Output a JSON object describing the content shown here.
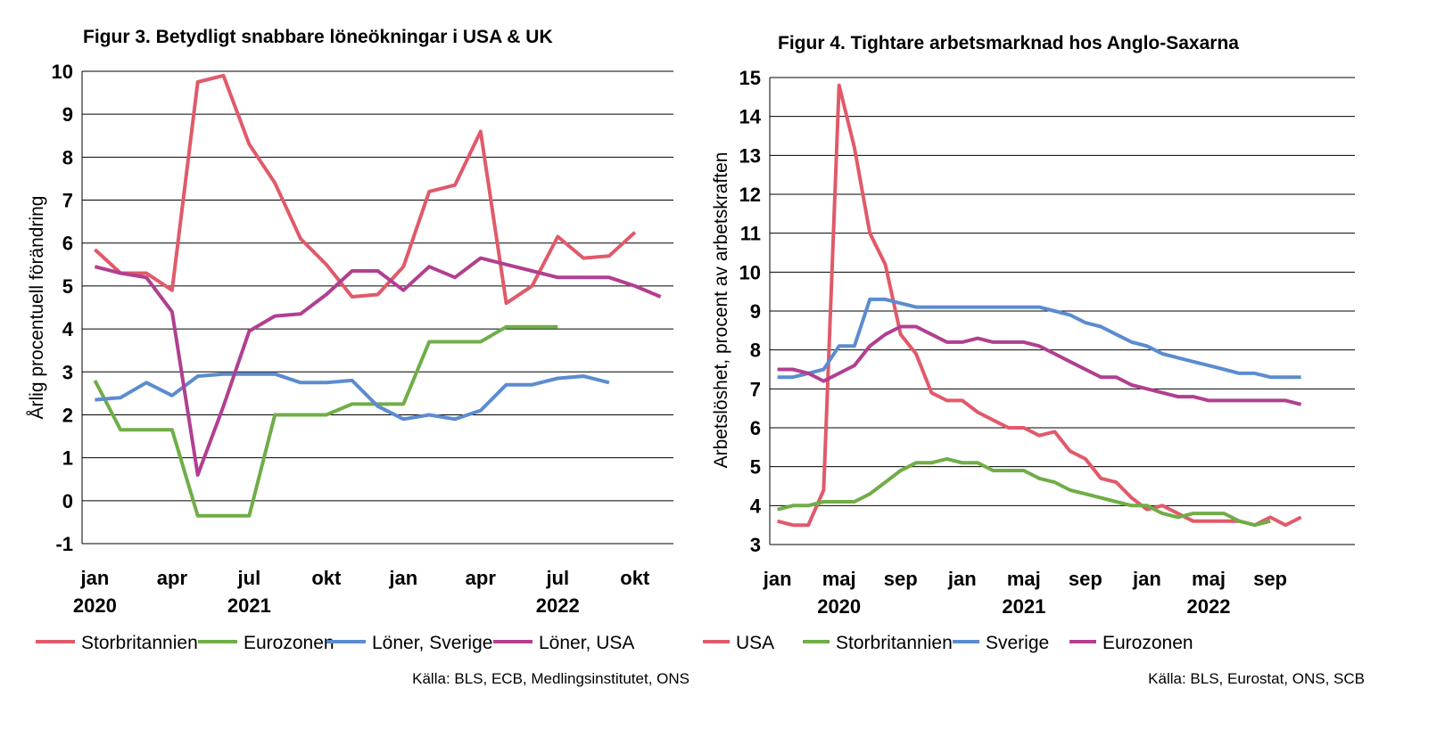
{
  "chart_data": [
    {
      "type": "line",
      "title": "Figur 3. Betydligt snabbare löneökningar i USA & UK",
      "ylabel": "Årlig procentuell förändring",
      "xlabel": "",
      "ylim": [
        -1,
        10
      ],
      "y_ticks": [
        "-1",
        "0",
        "1",
        "2",
        "3",
        "4",
        "5",
        "6",
        "7",
        "8",
        "9",
        "10"
      ],
      "x_ticks": [
        "jan",
        "apr",
        "jul",
        "okt",
        "jan",
        "apr",
        "jul",
        "okt"
      ],
      "year_labels": [
        "2020",
        "2021",
        "2022"
      ],
      "grid": true,
      "legend_position": "bottom",
      "source": "Källa: BLS, ECB, Medlingsinstitutet, ONS",
      "series": [
        {
          "name": "Storbritannien",
          "color": "#E05A6A",
          "x": [
            "2020-01",
            "2020-02",
            "2020-03",
            "2020-04",
            "2020-05",
            "2020-06",
            "2020-07",
            "2020-08",
            "2020-09",
            "2020-10",
            "2020-11",
            "2020-12",
            "2021-01",
            "2021-02",
            "2021-03",
            "2021-04",
            "2021-05",
            "2021-06",
            "2021-07",
            "2021-08",
            "2021-09",
            "2021-10",
            "2021-11",
            "2021-12"
          ],
          "values": [
            5.85,
            5.3,
            5.3,
            4.9,
            9.75,
            9.9,
            8.3,
            7.4,
            6.1,
            5.5,
            4.75,
            4.8,
            5.45,
            7.2,
            7.35,
            8.6,
            4.6,
            5.0,
            6.15,
            5.65,
            5.7,
            6.25,
            null,
            null
          ]
        },
        {
          "name": "Eurozonen",
          "color": "#70AD47",
          "x": [
            "2020-01",
            "2020-02",
            "2020-03",
            "2020-04",
            "2020-05",
            "2020-06",
            "2020-07",
            "2020-08",
            "2020-09",
            "2020-10",
            "2020-11",
            "2020-12",
            "2021-01",
            "2021-02",
            "2021-03",
            "2021-04",
            "2021-05",
            "2021-06",
            "2021-07",
            "2021-08",
            "2021-09",
            "2021-10",
            "2021-11",
            "2021-12"
          ],
          "values": [
            2.8,
            1.65,
            1.65,
            1.65,
            -0.35,
            -0.35,
            -0.35,
            2.0,
            2.0,
            2.0,
            2.25,
            2.25,
            2.25,
            3.7,
            3.7,
            3.7,
            4.05,
            4.05,
            4.05,
            null,
            null,
            null,
            null,
            null
          ]
        },
        {
          "name": "Löner, Sverige",
          "color": "#5B8CCF",
          "x": [
            "2020-01",
            "2020-02",
            "2020-03",
            "2020-04",
            "2020-05",
            "2020-06",
            "2020-07",
            "2020-08",
            "2020-09",
            "2020-10",
            "2020-11",
            "2020-12",
            "2021-01",
            "2021-02",
            "2021-03",
            "2021-04",
            "2021-05",
            "2021-06",
            "2021-07",
            "2021-08",
            "2021-09",
            "2021-10",
            "2021-11",
            "2021-12"
          ],
          "values": [
            2.35,
            2.4,
            2.75,
            2.45,
            2.9,
            2.95,
            2.95,
            2.95,
            2.75,
            2.75,
            2.8,
            2.2,
            1.9,
            2.0,
            1.9,
            2.1,
            2.7,
            2.7,
            2.85,
            2.9,
            2.75,
            null,
            null,
            null
          ]
        },
        {
          "name": "Löner, USA",
          "color": "#B13F90",
          "x": [
            "2020-01",
            "2020-02",
            "2020-03",
            "2020-04",
            "2020-05",
            "2020-06",
            "2020-07",
            "2020-08",
            "2020-09",
            "2020-10",
            "2020-11",
            "2020-12",
            "2021-01",
            "2021-02",
            "2021-03",
            "2021-04",
            "2021-05",
            "2021-06",
            "2021-07",
            "2021-08",
            "2021-09",
            "2021-10",
            "2021-11",
            "2021-12"
          ],
          "values": [
            5.45,
            5.3,
            5.2,
            4.4,
            0.6,
            2.2,
            3.95,
            4.3,
            4.35,
            4.8,
            5.35,
            5.35,
            4.9,
            5.45,
            5.2,
            5.65,
            5.5,
            5.35,
            5.2,
            5.2,
            5.2,
            5.0,
            4.75,
            null
          ]
        }
      ]
    },
    {
      "type": "line",
      "title": "Figur 4. Tightare arbetsmarknad hos Anglo-Saxarna",
      "ylabel": "Arbetslöshet, procent av arbetskraften",
      "xlabel": "",
      "ylim": [
        3,
        15
      ],
      "y_ticks": [
        "3",
        "4",
        "5",
        "6",
        "7",
        "8",
        "9",
        "10",
        "11",
        "12",
        "13",
        "14",
        "15"
      ],
      "x_ticks": [
        "jan",
        "maj",
        "sep",
        "jan",
        "maj",
        "sep",
        "jan",
        "maj",
        "sep"
      ],
      "year_labels": [
        "2020",
        "2021",
        "2022"
      ],
      "grid": true,
      "legend_position": "bottom",
      "source": "Källa: BLS, Eurostat, ONS, SCB",
      "series": [
        {
          "name": "USA",
          "color": "#E05A6A",
          "x": [
            "2020-01",
            "2020-02",
            "2020-03",
            "2020-04",
            "2020-05",
            "2020-06",
            "2020-07",
            "2020-08",
            "2020-09",
            "2020-10",
            "2020-11",
            "2020-12",
            "2021-01",
            "2021-02",
            "2021-03",
            "2021-04",
            "2021-05",
            "2021-06",
            "2021-07",
            "2021-08",
            "2021-09",
            "2021-10",
            "2021-11",
            "2021-12",
            "2022-01",
            "2022-02",
            "2022-03",
            "2022-04",
            "2022-05",
            "2022-06",
            "2022-07",
            "2022-08",
            "2022-09",
            "2022-10",
            "2022-11",
            "2022-12",
            "2023-01",
            "2023-02",
            "2023-03",
            "2023-04",
            "2023-05",
            "2023-06"
          ],
          "values": [
            3.6,
            3.5,
            3.5,
            4.4,
            14.8,
            13.2,
            11.0,
            10.2,
            8.4,
            7.9,
            6.9,
            6.7,
            6.7,
            6.4,
            6.2,
            6.0,
            6.0,
            5.8,
            5.9,
            5.4,
            5.2,
            4.7,
            4.6,
            4.2,
            3.9,
            4.0,
            3.8,
            3.6,
            3.6,
            3.6,
            3.6,
            3.5,
            3.7,
            3.5,
            3.7,
            null,
            null,
            null,
            null,
            null,
            null,
            null
          ]
        },
        {
          "name": "Storbritannien",
          "color": "#70AD47",
          "x": [
            "2020-01",
            "2020-02",
            "2020-03",
            "2020-04",
            "2020-05",
            "2020-06",
            "2020-07",
            "2020-08",
            "2020-09",
            "2020-10",
            "2020-11",
            "2020-12",
            "2021-01",
            "2021-02",
            "2021-03",
            "2021-04",
            "2021-05",
            "2021-06",
            "2021-07",
            "2021-08",
            "2021-09",
            "2021-10",
            "2021-11",
            "2021-12",
            "2022-01",
            "2022-02",
            "2022-03",
            "2022-04",
            "2022-05",
            "2022-06",
            "2022-07",
            "2022-08",
            "2022-09",
            "2022-10",
            "2022-11",
            "2022-12",
            "2023-01",
            "2023-02",
            "2023-03",
            "2023-04",
            "2023-05",
            "2023-06"
          ],
          "values": [
            3.9,
            4.0,
            4.0,
            4.1,
            4.1,
            4.1,
            4.3,
            4.6,
            4.9,
            5.1,
            5.1,
            5.2,
            5.1,
            5.1,
            4.9,
            4.9,
            4.9,
            4.7,
            4.6,
            4.4,
            4.3,
            4.2,
            4.1,
            4.0,
            4.0,
            3.8,
            3.7,
            3.8,
            3.8,
            3.8,
            3.6,
            3.5,
            3.6,
            null,
            null,
            null,
            null,
            null,
            null,
            null,
            null,
            null
          ]
        },
        {
          "name": "Sverige",
          "color": "#5B8CCF",
          "x": [
            "2020-01",
            "2020-02",
            "2020-03",
            "2020-04",
            "2020-05",
            "2020-06",
            "2020-07",
            "2020-08",
            "2020-09",
            "2020-10",
            "2020-11",
            "2020-12",
            "2021-01",
            "2021-02",
            "2021-03",
            "2021-04",
            "2021-05",
            "2021-06",
            "2021-07",
            "2021-08",
            "2021-09",
            "2021-10",
            "2021-11",
            "2021-12",
            "2022-01",
            "2022-02",
            "2022-03",
            "2022-04",
            "2022-05",
            "2022-06",
            "2022-07",
            "2022-08",
            "2022-09",
            "2022-10",
            "2022-11",
            "2022-12",
            "2023-01",
            "2023-02",
            "2023-03",
            "2023-04",
            "2023-05",
            "2023-06"
          ],
          "values": [
            7.3,
            7.3,
            7.4,
            7.5,
            8.1,
            8.1,
            9.3,
            9.3,
            9.2,
            9.1,
            9.1,
            9.1,
            9.1,
            9.1,
            9.1,
            9.1,
            9.1,
            9.1,
            9.0,
            8.9,
            8.7,
            8.6,
            8.4,
            8.2,
            8.1,
            7.9,
            7.8,
            7.7,
            7.6,
            7.5,
            7.4,
            7.4,
            7.3,
            7.3,
            7.3,
            null,
            null,
            null,
            null,
            null,
            null,
            null
          ]
        },
        {
          "name": "Eurozonen",
          "color": "#B13F90",
          "x": [
            "2020-01",
            "2020-02",
            "2020-03",
            "2020-04",
            "2020-05",
            "2020-06",
            "2020-07",
            "2020-08",
            "2020-09",
            "2020-10",
            "2020-11",
            "2020-12",
            "2021-01",
            "2021-02",
            "2021-03",
            "2021-04",
            "2021-05",
            "2021-06",
            "2021-07",
            "2021-08",
            "2021-09",
            "2021-10",
            "2021-11",
            "2021-12",
            "2022-01",
            "2022-02",
            "2022-03",
            "2022-04",
            "2022-05",
            "2022-06",
            "2022-07",
            "2022-08",
            "2022-09",
            "2022-10",
            "2022-11",
            "2022-12",
            "2023-01",
            "2023-02",
            "2023-03",
            "2023-04",
            "2023-05",
            "2023-06"
          ],
          "values": [
            7.5,
            7.5,
            7.4,
            7.2,
            7.4,
            7.6,
            8.1,
            8.4,
            8.6,
            8.6,
            8.4,
            8.2,
            8.2,
            8.3,
            8.2,
            8.2,
            8.2,
            8.1,
            7.9,
            7.7,
            7.5,
            7.3,
            7.3,
            7.1,
            7.0,
            6.9,
            6.8,
            6.8,
            6.7,
            6.7,
            6.7,
            6.7,
            6.7,
            6.7,
            6.6,
            null,
            null,
            null,
            null,
            null,
            null,
            null
          ]
        }
      ]
    }
  ]
}
